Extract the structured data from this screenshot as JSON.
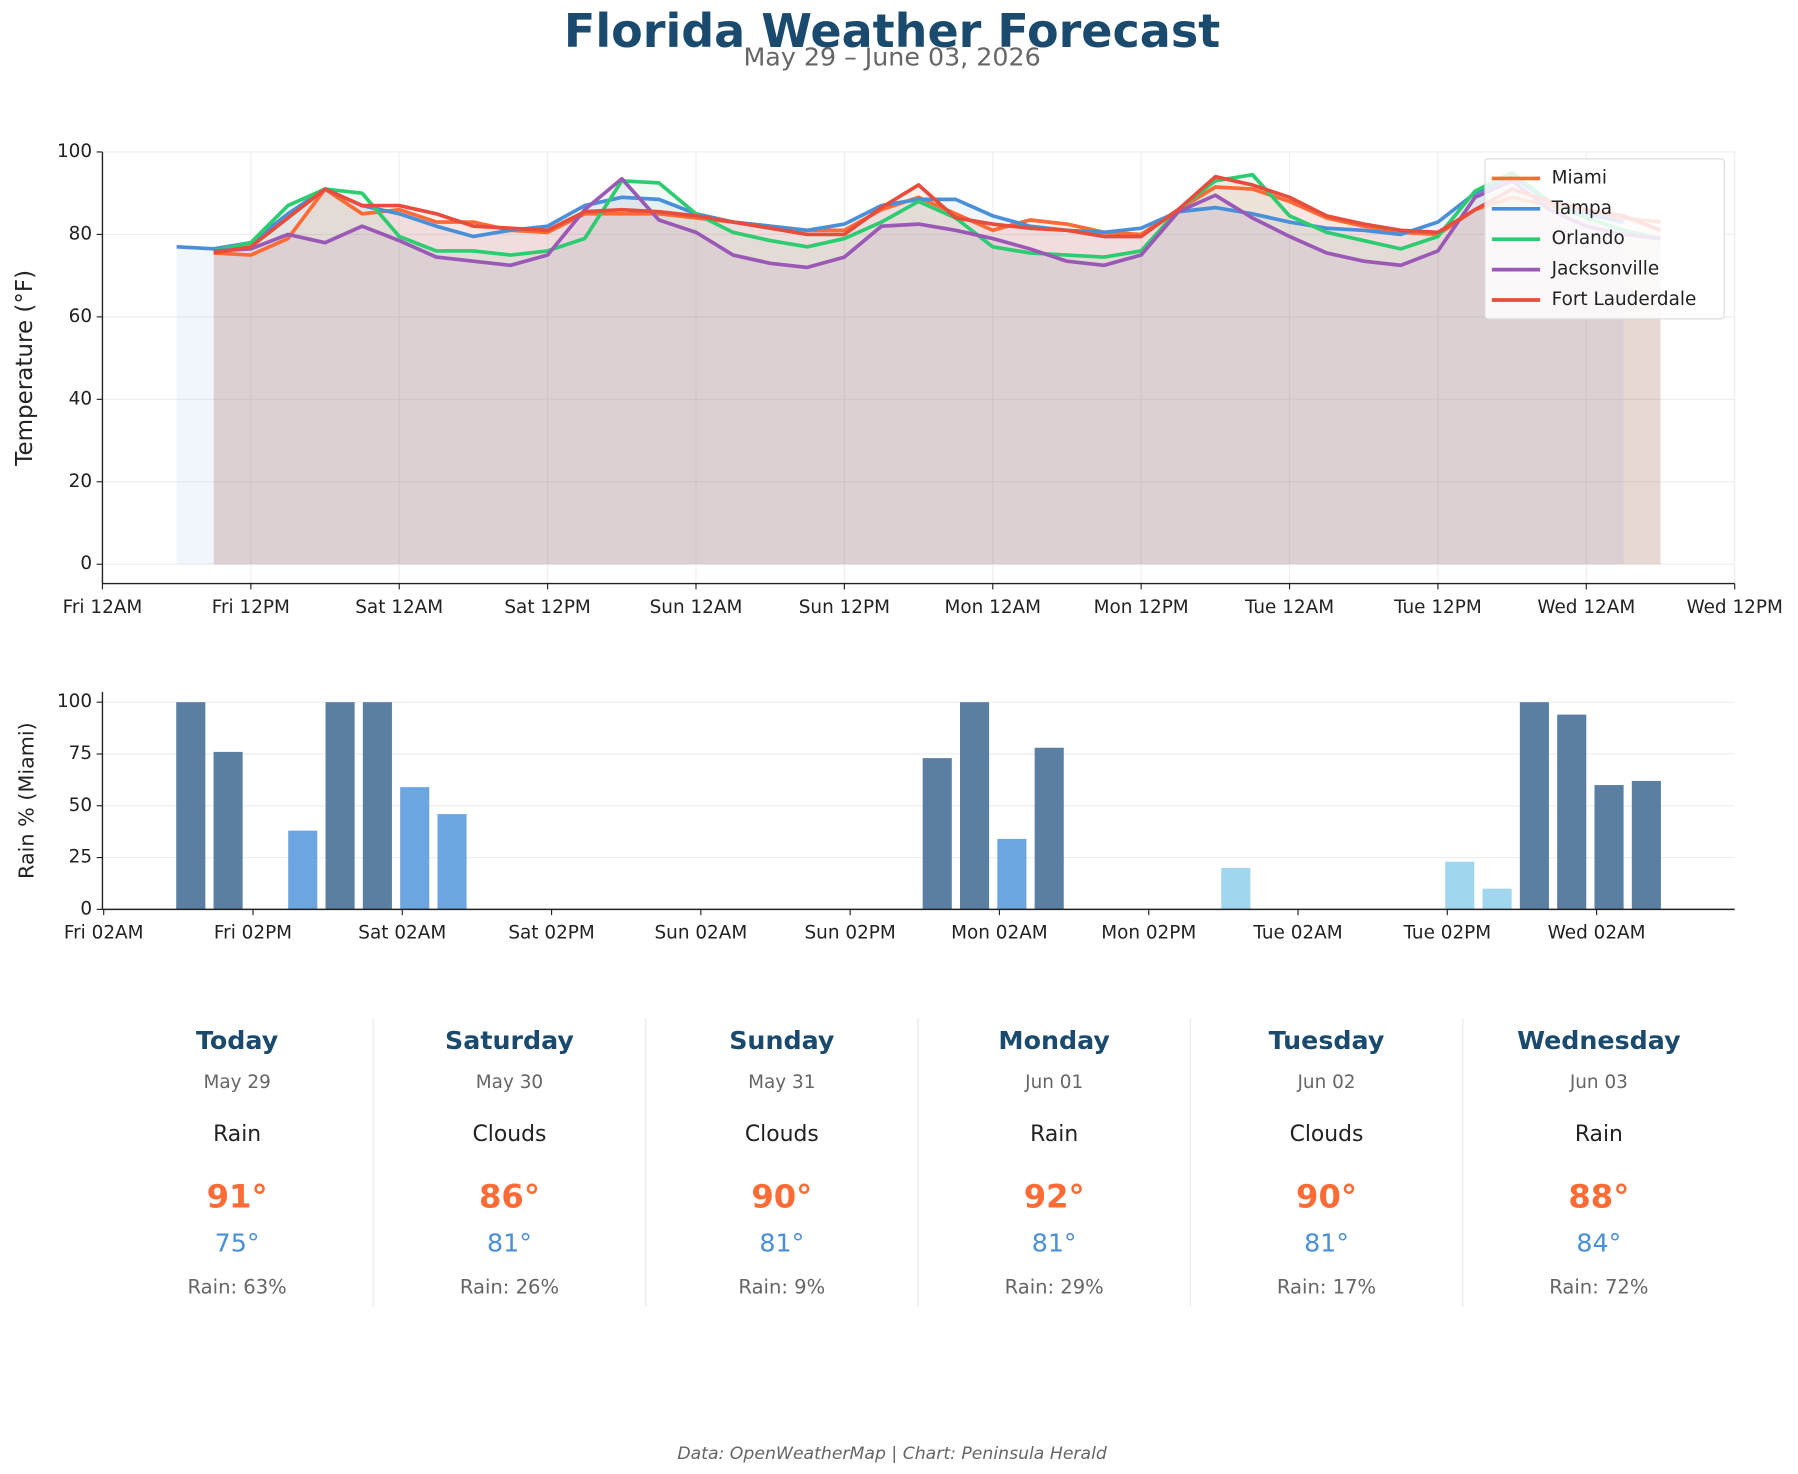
{
  "title": "Florida Weather Forecast",
  "subtitle": "May 29 – June 03, 2026",
  "chart_data": [
    {
      "type": "line",
      "ylabel": "Temperature (°F)",
      "fill": true,
      "grid": "both",
      "legend": "upper right",
      "x": [
        6,
        9,
        12,
        15,
        18,
        21,
        24,
        27,
        30,
        33,
        36,
        39,
        42,
        45,
        48,
        51,
        54,
        57,
        60,
        63,
        66,
        69,
        72,
        75,
        78,
        81,
        84,
        87,
        90,
        93,
        96,
        99,
        102,
        105,
        108,
        111,
        114,
        117,
        120,
        123,
        126
      ],
      "xlim": [
        0,
        132
      ],
      "xticks": [
        {
          "value": 0,
          "label": "Fri 12AM"
        },
        {
          "value": 12,
          "label": "Fri 12PM"
        },
        {
          "value": 24,
          "label": "Sat 12AM"
        },
        {
          "value": 36,
          "label": "Sat 12PM"
        },
        {
          "value": 48,
          "label": "Sun 12AM"
        },
        {
          "value": 60,
          "label": "Sun 12PM"
        },
        {
          "value": 72,
          "label": "Mon 12AM"
        },
        {
          "value": 84,
          "label": "Mon 12PM"
        },
        {
          "value": 96,
          "label": "Tue 12AM"
        },
        {
          "value": 108,
          "label": "Tue 12PM"
        },
        {
          "value": 120,
          "label": "Wed 12AM"
        },
        {
          "value": 132,
          "label": "Wed 12PM"
        }
      ],
      "ylim": [
        -4.7,
        100
      ],
      "yticks": [
        0,
        20,
        40,
        60,
        80,
        100
      ],
      "series": [
        {
          "name": "Miami",
          "color": "#ff6b35",
          "values": [
            null,
            75.5,
            75,
            79,
            91,
            85,
            86,
            83,
            83,
            81,
            80.5,
            85,
            85,
            85,
            84,
            83,
            82,
            81,
            81,
            86,
            89,
            85,
            81,
            83.5,
            82.5,
            80.5,
            80,
            86,
            91.5,
            91,
            88,
            84,
            82,
            80.5,
            80,
            86,
            89,
            87,
            85,
            84,
            83
          ]
        },
        {
          "name": "Tampa",
          "color": "#4a90d9",
          "values": [
            77,
            76.5,
            78,
            85,
            91,
            87,
            85,
            82,
            79.5,
            81,
            82,
            87,
            89,
            88.5,
            85,
            83,
            82,
            81,
            82.5,
            87,
            88.5,
            88.5,
            84.5,
            82,
            81,
            80.5,
            81.5,
            85.5,
            86.5,
            85,
            83,
            81.5,
            81,
            80,
            83,
            90,
            94,
            88,
            85,
            83,
            null
          ]
        },
        {
          "name": "Orlando",
          "color": "#2ecc71",
          "values": [
            null,
            76,
            78,
            87,
            91,
            90,
            79.5,
            76,
            76,
            75,
            76,
            79,
            93,
            92.5,
            85,
            80.5,
            78.5,
            77,
            79,
            83,
            88,
            84,
            77,
            75.5,
            75,
            74.5,
            76,
            86,
            93,
            94.5,
            84.5,
            80.5,
            78.5,
            76.5,
            79.5,
            90.5,
            95,
            88,
            84,
            81,
            79
          ]
        },
        {
          "name": "Jacksonville",
          "color": "#9b59b6",
          "values": [
            null,
            76,
            76.5,
            80,
            78,
            82,
            78.5,
            74.5,
            73.5,
            72.5,
            75,
            86,
            93.5,
            83.5,
            80.5,
            75,
            73,
            72,
            74.5,
            82,
            82.5,
            81,
            79,
            76.5,
            73.5,
            72.5,
            75,
            85.5,
            89.5,
            84,
            79.5,
            75.5,
            73.5,
            72.5,
            76,
            89,
            93,
            86,
            82,
            80,
            79
          ]
        },
        {
          "name": "Fort Lauderdale",
          "color": "#e74c3c",
          "values": [
            null,
            75.5,
            77,
            84,
            91,
            87,
            87,
            85,
            82,
            81.5,
            81,
            85.5,
            86,
            85.5,
            84.5,
            83,
            81.5,
            80,
            80,
            86.5,
            92,
            84,
            82.5,
            81.5,
            81,
            79.5,
            79.5,
            86,
            94,
            92,
            89,
            84.5,
            82.5,
            81,
            80.5,
            86,
            91,
            88,
            86,
            84.5,
            81
          ]
        }
      ]
    },
    {
      "type": "bar",
      "ylabel": "Rain % (Miami)",
      "grid": "y",
      "x": [
        9,
        12,
        15,
        18,
        21,
        24,
        27,
        30,
        33,
        36,
        39,
        42,
        45,
        48,
        51,
        54,
        57,
        60,
        63,
        66,
        69,
        72,
        75,
        78,
        81,
        84,
        87,
        90,
        93,
        96,
        99,
        102,
        105,
        108,
        111,
        114,
        117,
        120,
        123,
        126
      ],
      "values": [
        100,
        76,
        0,
        38,
        100,
        100,
        59,
        46,
        0,
        0,
        0,
        0,
        0,
        0,
        0,
        0,
        0,
        0,
        0,
        0,
        73,
        100,
        34,
        78,
        0,
        0,
        0,
        0,
        20,
        0,
        0,
        0,
        0,
        0,
        23,
        10,
        100,
        94,
        60,
        62
      ],
      "colors": [
        "#5a7fa3",
        "#5a7fa3",
        "#5a7fa3",
        "#6ca6e0",
        "#5a7fa3",
        "#5a7fa3",
        "#6ca6e0",
        "#6ca6e0",
        "#5a7fa3",
        "#5a7fa3",
        "#5a7fa3",
        "#5a7fa3",
        "#5a7fa3",
        "#5a7fa3",
        "#5a7fa3",
        "#5a7fa3",
        "#5a7fa3",
        "#5a7fa3",
        "#5a7fa3",
        "#5a7fa3",
        "#5a7fa3",
        "#5a7fa3",
        "#6ca6e0",
        "#5a7fa3",
        "#5a7fa3",
        "#5a7fa3",
        "#5a7fa3",
        "#5a7fa3",
        "#a0d6ee",
        "#5a7fa3",
        "#5a7fa3",
        "#5a7fa3",
        "#5a7fa3",
        "#5a7fa3",
        "#a0d6ee",
        "#a0d6ee",
        "#5a7fa3",
        "#5a7fa3",
        "#5a7fa3",
        "#5a7fa3"
      ],
      "xlim": [
        1.9,
        133.1
      ],
      "xticks": [
        {
          "value": 2,
          "label": "Fri 02AM"
        },
        {
          "value": 14,
          "label": "Fri 02PM"
        },
        {
          "value": 26,
          "label": "Sat 02AM"
        },
        {
          "value": 38,
          "label": "Sat 02PM"
        },
        {
          "value": 50,
          "label": "Sun 02AM"
        },
        {
          "value": 62,
          "label": "Sun 02PM"
        },
        {
          "value": 74,
          "label": "Mon 02AM"
        },
        {
          "value": 86,
          "label": "Mon 02PM"
        },
        {
          "value": 98,
          "label": "Tue 02AM"
        },
        {
          "value": 110,
          "label": "Tue 02PM"
        },
        {
          "value": 122,
          "label": "Wed 02AM"
        }
      ],
      "ylim": [
        0,
        105
      ],
      "yticks": [
        0,
        25,
        50,
        75,
        100
      ]
    }
  ],
  "forecast": [
    {
      "day": "Today",
      "date": "May 29",
      "condition": "Rain",
      "high": "91°",
      "low": "75°",
      "rain": "Rain: 63%"
    },
    {
      "day": "Saturday",
      "date": "May 30",
      "condition": "Clouds",
      "high": "86°",
      "low": "81°",
      "rain": "Rain: 26%"
    },
    {
      "day": "Sunday",
      "date": "May 31",
      "condition": "Clouds",
      "high": "90°",
      "low": "81°",
      "rain": "Rain: 9%"
    },
    {
      "day": "Monday",
      "date": "Jun 01",
      "condition": "Rain",
      "high": "92°",
      "low": "81°",
      "rain": "Rain: 29%"
    },
    {
      "day": "Tuesday",
      "date": "Jun 02",
      "condition": "Clouds",
      "high": "90°",
      "low": "81°",
      "rain": "Rain: 17%"
    },
    {
      "day": "Wednesday",
      "date": "Jun 03",
      "condition": "Rain",
      "high": "88°",
      "low": "84°",
      "rain": "Rain: 72%"
    }
  ],
  "footer": "Data: OpenWeatherMap | Chart: Peninsula Herald"
}
